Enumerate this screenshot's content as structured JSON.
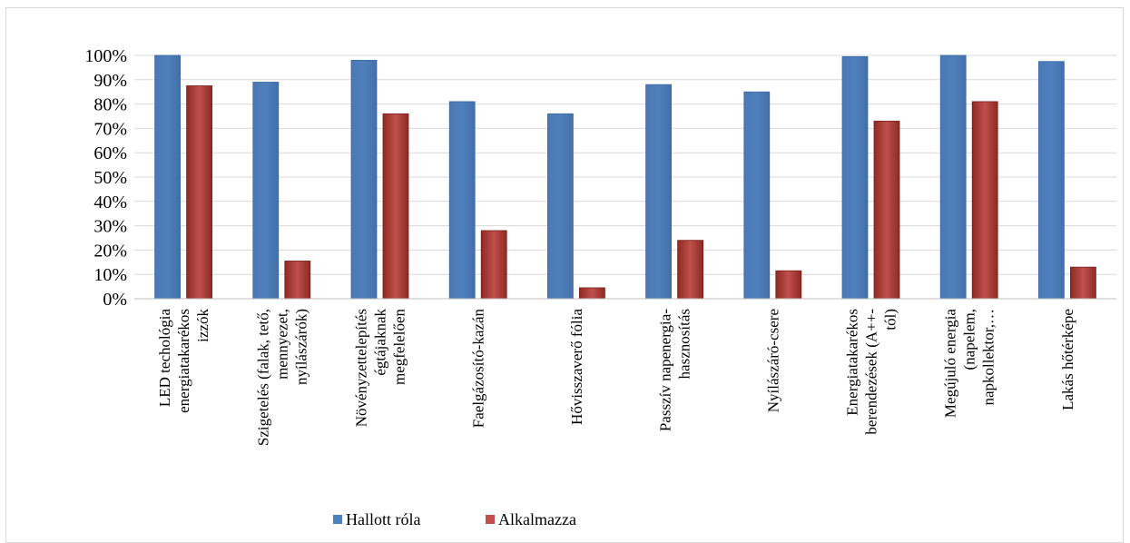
{
  "chart_data": {
    "type": "bar",
    "title": "",
    "xlabel": "",
    "ylabel": "",
    "ylim": [
      0,
      100
    ],
    "y_ticks": [
      "0%",
      "10%",
      "20%",
      "30%",
      "40%",
      "50%",
      "60%",
      "70%",
      "80%",
      "90%",
      "100%"
    ],
    "grid": true,
    "legend_position": "bottom",
    "categories": [
      [
        "LED techológia",
        "energiatakarékos",
        "izzók"
      ],
      [
        "Szigetelés (falak, tető,",
        "mennyezet,",
        "nyílászárók)"
      ],
      [
        "Növényzettelepítés",
        "égtájaknak",
        "megfelelően"
      ],
      [
        "Faelgázosító-kazán"
      ],
      [
        "Hővisszaverő fólia"
      ],
      [
        "Passzív napenergia-",
        "hasznosítás"
      ],
      [
        "Nyílászáró-csere"
      ],
      [
        "Energiatakarékos",
        "berendezések (A++-",
        "tól)"
      ],
      [
        "Megújuló energia",
        "(napelem,",
        "napkollektor,…"
      ],
      [
        "Lakás hőtérképe"
      ]
    ],
    "series": [
      {
        "name": "Hallott róla",
        "color": "#4f81bd",
        "values": [
          100,
          89,
          98,
          81,
          76,
          88,
          85,
          99.5,
          100,
          97.5
        ]
      },
      {
        "name": "Alkalmazza",
        "color": "#c0504d",
        "values": [
          87.5,
          15.5,
          76,
          28,
          4.5,
          24,
          11.5,
          73,
          81,
          13
        ]
      }
    ]
  }
}
